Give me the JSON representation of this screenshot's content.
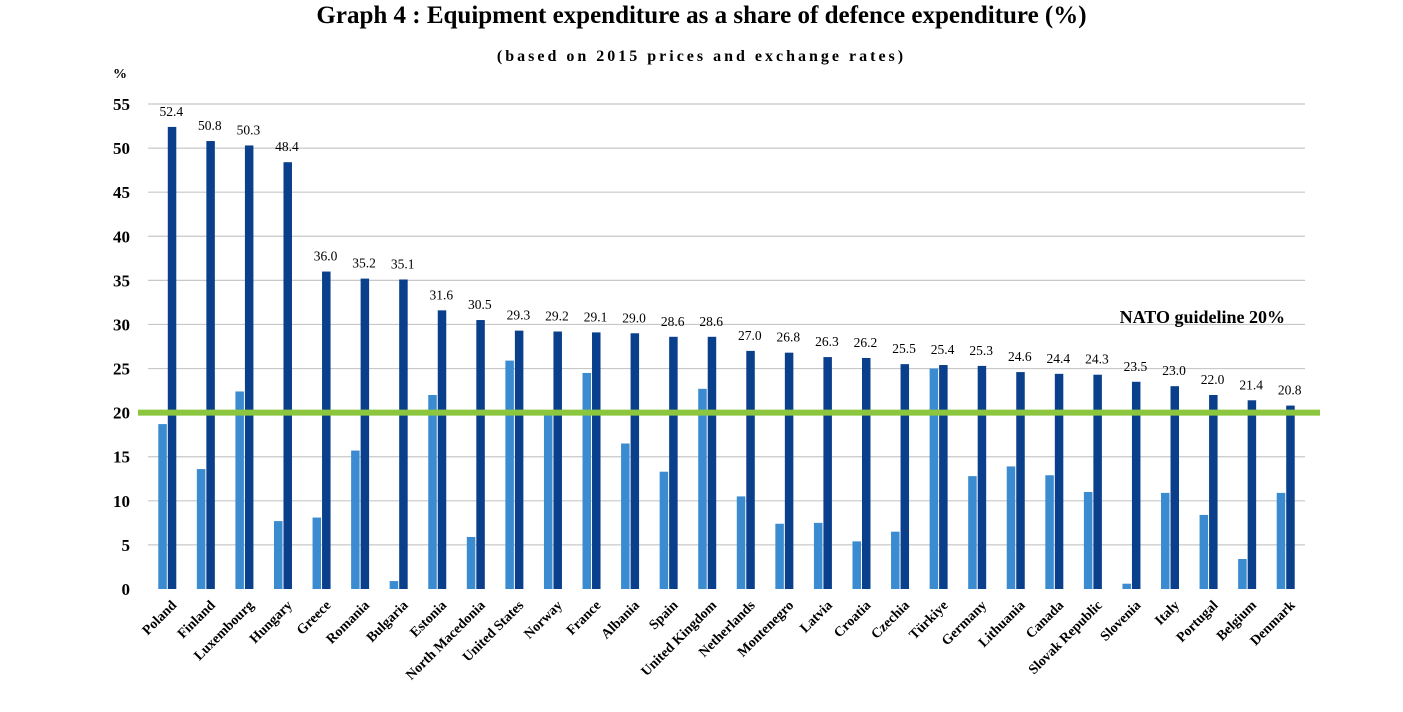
{
  "chart_data": {
    "type": "bar",
    "title": "Graph 4 : Equipment expenditure as a share of defence expenditure (%)",
    "subtitle": "(based on 2015 prices and exchange rates)",
    "ylabel": "%",
    "xlabel": "",
    "ylim": [
      0,
      55
    ],
    "yticks": [
      0,
      5,
      10,
      15,
      20,
      25,
      30,
      35,
      40,
      45,
      50,
      55
    ],
    "grid": true,
    "categories": [
      "Poland",
      "Finland",
      "Luxembourg",
      "Hungary",
      "Greece",
      "Romania",
      "Bulgaria",
      "Estonia",
      "North Macedonia",
      "United States",
      "Norway",
      "France",
      "Albania",
      "Spain",
      "United Kingdom",
      "Netherlands",
      "Montenegro",
      "Latvia",
      "Croatia",
      "Czechia",
      "Türkiye",
      "Germany",
      "Lithuania",
      "Canada",
      "Slovak Republic",
      "Slovenia",
      "Italy",
      "Portugal",
      "Belgium",
      "Denmark"
    ],
    "series": [
      {
        "color": "#3a8bd0",
        "values": [
          18.7,
          13.6,
          22.4,
          7.7,
          8.1,
          15.7,
          0.9,
          22.0,
          5.9,
          25.9,
          20.0,
          24.5,
          16.5,
          13.3,
          22.7,
          10.5,
          7.4,
          7.5,
          5.4,
          6.5,
          25.0,
          12.8,
          13.9,
          12.9,
          11.0,
          0.6,
          10.9,
          8.4,
          3.4,
          10.9
        ]
      },
      {
        "color": "#0a3f8c",
        "values": [
          52.4,
          50.8,
          50.3,
          48.4,
          36.0,
          35.2,
          35.1,
          31.6,
          30.5,
          29.3,
          29.2,
          29.1,
          29.0,
          28.6,
          28.6,
          27.0,
          26.8,
          26.3,
          26.2,
          25.5,
          25.4,
          25.3,
          24.6,
          24.4,
          24.3,
          23.5,
          23.0,
          22.0,
          21.4,
          20.8
        ],
        "labels": [
          "52.4",
          "50.8",
          "50.3",
          "48.4",
          "36.0",
          "35.2",
          "35.1",
          "31.6",
          "30.5",
          "29.3",
          "29.2",
          "29.1",
          "29.0",
          "28.6",
          "28.6",
          "27.0",
          "26.8",
          "26.3",
          "26.2",
          "25.5",
          "25.4",
          "25.3",
          "24.6",
          "24.4",
          "24.3",
          "23.5",
          "23.0",
          "22.0",
          "21.4",
          "20.8"
        ]
      }
    ],
    "reference_line": {
      "value": 20,
      "label": "NATO guideline 20%",
      "color": "#8cc63f"
    },
    "gridline_color": "#c8c8c8"
  }
}
